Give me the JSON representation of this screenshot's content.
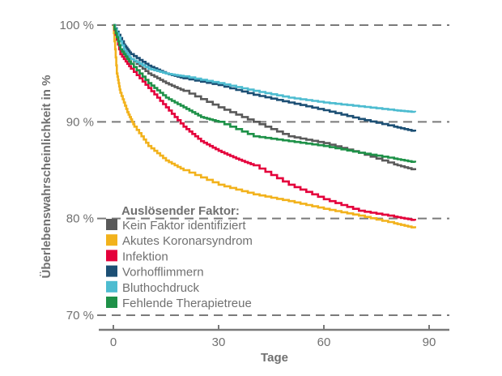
{
  "chart_data": {
    "type": "line",
    "title": "",
    "xlabel": "Tage",
    "ylabel": "Überlebenswahrscheinlichkeit in %",
    "xlim": [
      0,
      90
    ],
    "ylim": [
      70,
      100
    ],
    "x_ticks": [
      0,
      30,
      60,
      90
    ],
    "x_tick_labels": [
      "0",
      "30",
      "60",
      "90"
    ],
    "y_ticks": [
      70,
      80,
      90,
      100
    ],
    "y_tick_labels": [
      "70 %",
      "80 %",
      "90 %",
      "100 %"
    ],
    "grid": "horizontal dashed",
    "legend_title": "Auslösender Faktor:",
    "legend_position": "bottom-left",
    "series": [
      {
        "name": "Kein Faktor identifiziert",
        "color": "#5a5a5a",
        "x": [
          0,
          2,
          5,
          10,
          15,
          20,
          30,
          40,
          50,
          60,
          70,
          80,
          86
        ],
        "y": [
          100,
          97.5,
          96.5,
          95.0,
          94.0,
          93.2,
          91.5,
          90.0,
          88.5,
          87.8,
          86.8,
          85.6,
          85.0
        ]
      },
      {
        "name": "Akutes Koronarsyndrom",
        "color": "#f2b21c",
        "x": [
          0,
          1,
          2,
          4,
          6,
          10,
          15,
          20,
          30,
          40,
          50,
          60,
          70,
          80,
          86
        ],
        "y": [
          100,
          95.0,
          93.0,
          91.0,
          89.5,
          87.5,
          86.0,
          85.0,
          83.5,
          82.5,
          81.8,
          81.0,
          80.3,
          79.5,
          79.0
        ]
      },
      {
        "name": "Infektion",
        "color": "#e4003b",
        "x": [
          0,
          2,
          5,
          10,
          15,
          20,
          25,
          30,
          35,
          40,
          50,
          60,
          70,
          80,
          86
        ],
        "y": [
          100,
          97.0,
          95.5,
          93.5,
          91.5,
          89.5,
          88.0,
          87.0,
          86.2,
          85.5,
          83.5,
          82.0,
          80.8,
          80.2,
          79.8
        ]
      },
      {
        "name": "Vorhofflimmern",
        "color": "#1c4f74",
        "x": [
          0,
          3,
          5,
          10,
          15,
          20,
          30,
          40,
          50,
          60,
          70,
          80,
          86
        ],
        "y": [
          100,
          98.0,
          97.0,
          95.8,
          95.0,
          94.5,
          93.8,
          92.8,
          92.0,
          91.2,
          90.3,
          89.5,
          89.0
        ]
      },
      {
        "name": "Bluthochdruck",
        "color": "#4dbcd0",
        "x": [
          0,
          3,
          5,
          10,
          15,
          20,
          30,
          40,
          50,
          60,
          70,
          80,
          86
        ],
        "y": [
          100,
          97.5,
          96.5,
          95.5,
          95.0,
          94.7,
          94.0,
          93.2,
          92.5,
          92.0,
          91.6,
          91.2,
          91.0
        ]
      },
      {
        "name": "Fehlende Therapietreue",
        "color": "#1e9148",
        "x": [
          0,
          2,
          5,
          10,
          15,
          20,
          25,
          30,
          40,
          50,
          60,
          70,
          80,
          86
        ],
        "y": [
          100,
          97.5,
          96.0,
          94.0,
          92.5,
          91.5,
          90.5,
          90.0,
          88.5,
          88.0,
          87.5,
          86.8,
          86.2,
          85.8
        ]
      }
    ]
  }
}
